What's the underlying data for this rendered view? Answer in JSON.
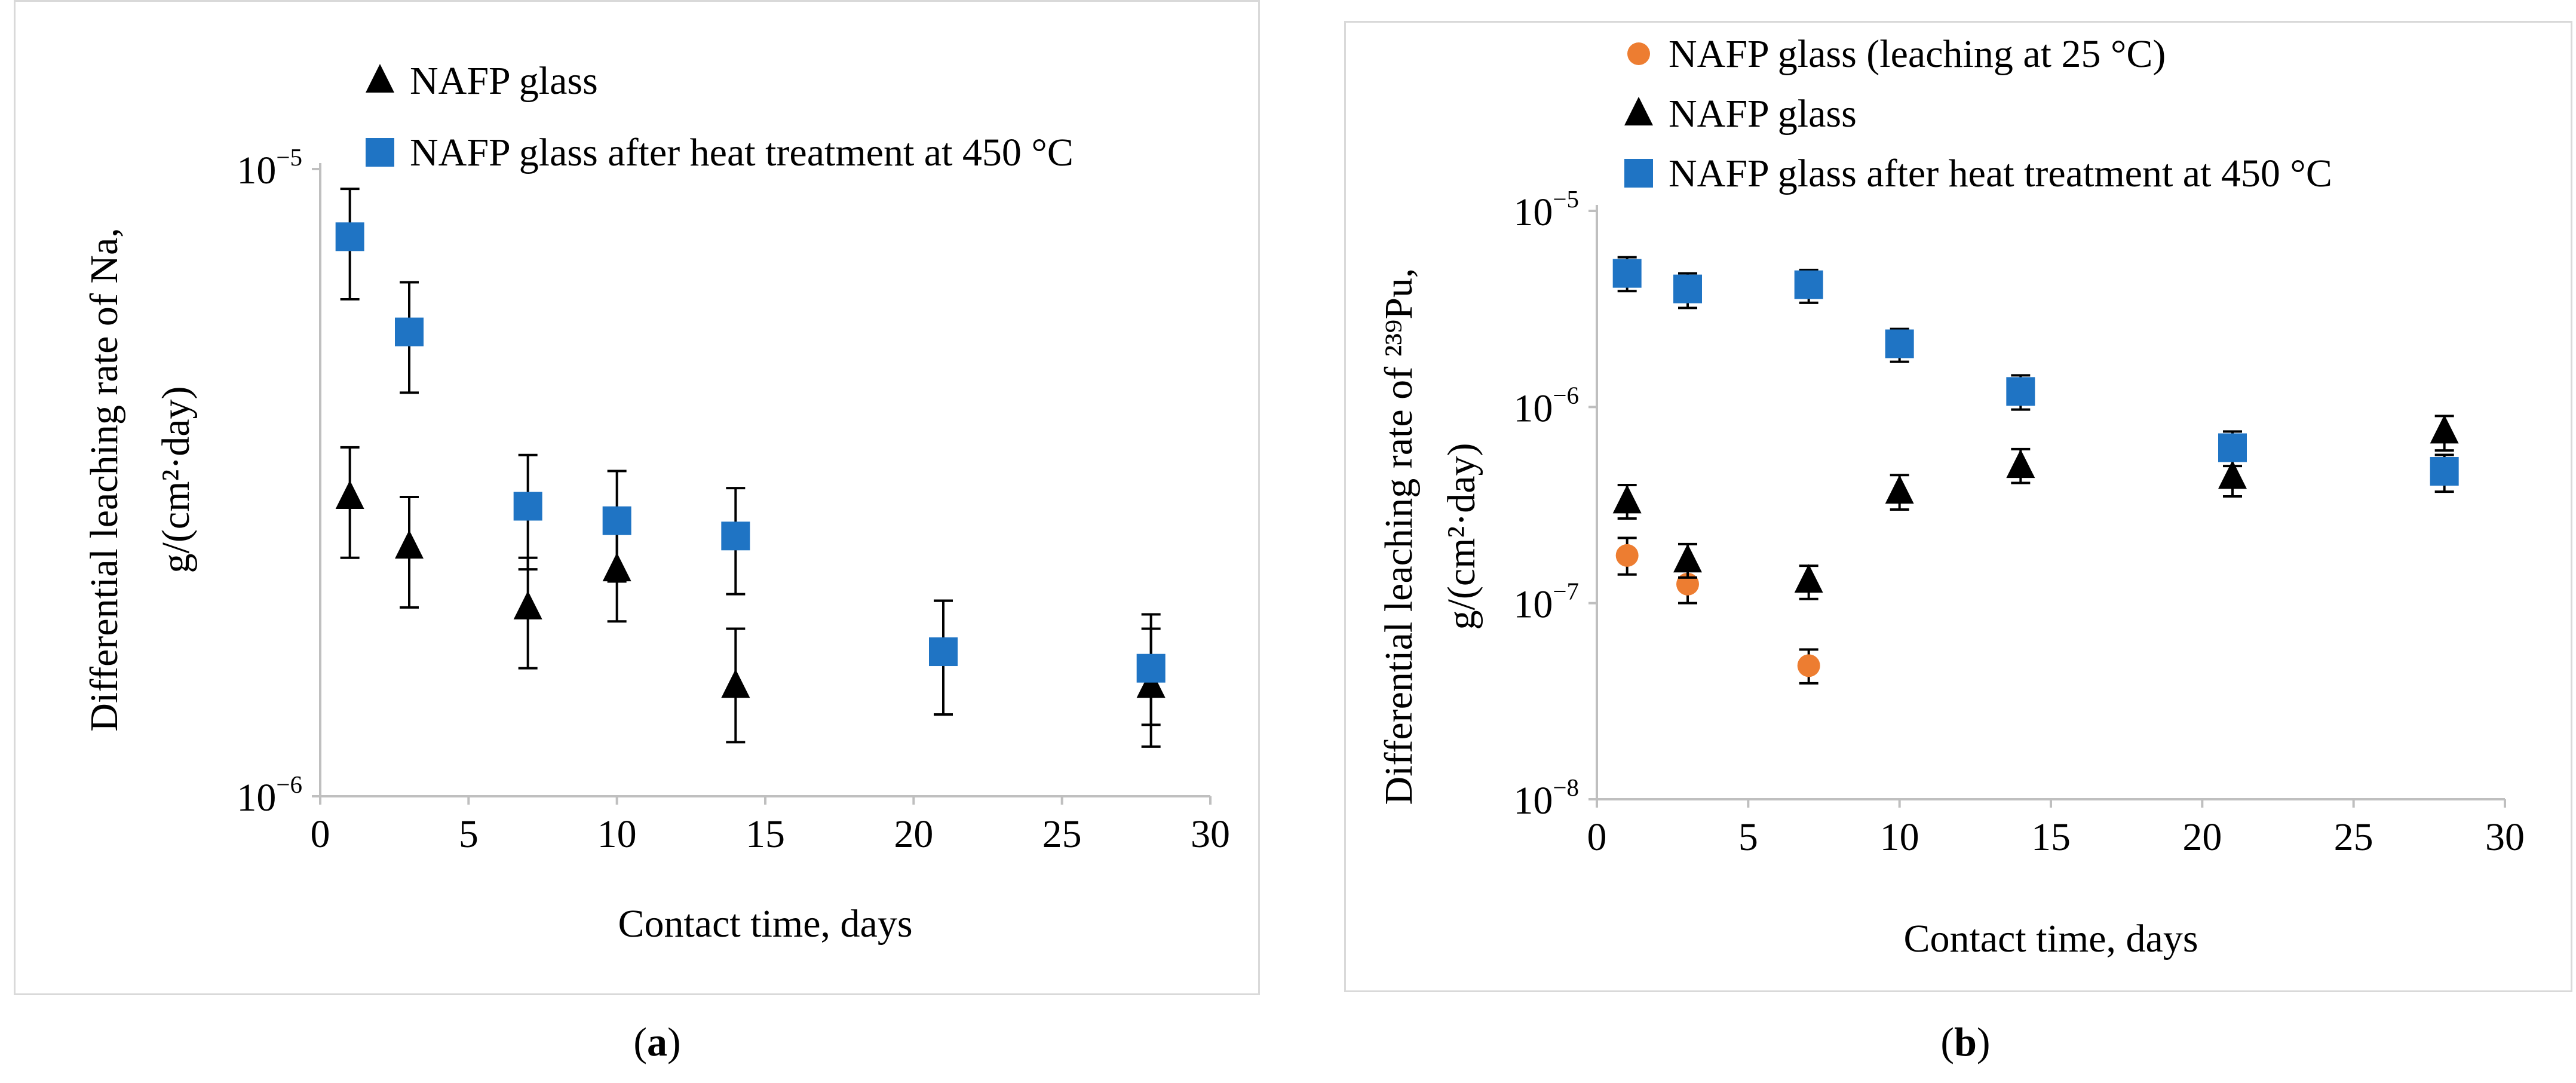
{
  "colors": {
    "blue": "#1f74c4",
    "orange": "#ed7d31",
    "black": "#000000",
    "axis": "#bfbfbf"
  },
  "chart_data": [
    {
      "id": "a",
      "type": "scatter",
      "yscale": "log",
      "xlabel": "Contact time, days",
      "ylabel_line1": "Differential leaching rate of Na,",
      "ylabel_line2": "g/(cm²·day)",
      "xlim": [
        0,
        30
      ],
      "ylim": [
        1e-06,
        1e-05
      ],
      "xticks": [
        "0",
        "5",
        "10",
        "15",
        "20",
        "25",
        "30"
      ],
      "yticks": [
        {
          "base": "10",
          "exp": "−6",
          "v": 1e-06
        },
        {
          "base": "10",
          "exp": "−5",
          "v": 1e-05
        }
      ],
      "subfig_label": "a",
      "series": [
        {
          "name": "NAFP glass",
          "marker": "triangle",
          "color": "#000000",
          "x": [
            1,
            3,
            7,
            10,
            14,
            21,
            28
          ],
          "y": [
            3e-06,
            2.5e-06,
            2e-06,
            2.3e-06,
            1.5e-06,
            1.7e-06,
            1.5e-06
          ],
          "err_low": [
            2.4e-06,
            2e-06,
            1.6e-06,
            1.9e-06,
            1.22e-06,
            1.35e-06,
            1.2e-06
          ],
          "err_high": [
            3.6e-06,
            3e-06,
            2.4e-06,
            2.8e-06,
            1.85e-06,
            2.05e-06,
            1.85e-06
          ]
        },
        {
          "name": "NAFP glass after heat treatment at 450 °C",
          "marker": "square",
          "color": "#1f74c4",
          "x": [
            1,
            3,
            7,
            10,
            14,
            21,
            28
          ],
          "y": [
            7.8e-06,
            5.5e-06,
            2.9e-06,
            2.75e-06,
            2.6e-06,
            1.7e-06,
            1.6e-06
          ],
          "err_low": [
            6.2e-06,
            4.4e-06,
            2.3e-06,
            2.2e-06,
            2.1e-06,
            1.35e-06,
            1.3e-06
          ],
          "err_high": [
            9.3e-06,
            6.6e-06,
            3.5e-06,
            3.3e-06,
            3.1e-06,
            2.05e-06,
            1.95e-06
          ]
        }
      ]
    },
    {
      "id": "b",
      "type": "scatter",
      "yscale": "log",
      "xlabel": "Contact time, days",
      "ylabel_line1": "Differential leaching rate of ²³⁹Pu,",
      "ylabel_line2": "g/(cm²·day)",
      "xlim": [
        0,
        30
      ],
      "ylim": [
        1e-08,
        1e-05
      ],
      "xticks": [
        "0",
        "5",
        "10",
        "15",
        "20",
        "25",
        "30"
      ],
      "yticks": [
        {
          "base": "10",
          "exp": "−8",
          "v": 1e-08
        },
        {
          "base": "10",
          "exp": "−7",
          "v": 1e-07
        },
        {
          "base": "10",
          "exp": "−6",
          "v": 1e-06
        },
        {
          "base": "10",
          "exp": "−5",
          "v": 1e-05
        }
      ],
      "subfig_label": "b",
      "series": [
        {
          "name": "NAFP glass (leaching at 25 °C)",
          "marker": "circle",
          "color": "#ed7d31",
          "x": [
            1,
            3,
            7
          ],
          "y": [
            1.75e-07,
            1.25e-07,
            4.8e-08
          ],
          "err_low": [
            1.4e-07,
            1e-07,
            3.9e-08
          ],
          "err_high": [
            2.15e-07,
            1.5e-07,
            5.8e-08
          ]
        },
        {
          "name": "NAFP glass",
          "marker": "triangle",
          "color": "#000000",
          "x": [
            1,
            3,
            7,
            10,
            14,
            21,
            28
          ],
          "y": [
            3.3e-07,
            1.65e-07,
            1.3e-07,
            3.7e-07,
            5e-07,
            4.4e-07,
            7.5e-07
          ],
          "err_low": [
            2.7e-07,
            1.35e-07,
            1.05e-07,
            3e-07,
            4.1e-07,
            3.5e-07,
            6e-07
          ],
          "err_high": [
            4e-07,
            2e-07,
            1.55e-07,
            4.5e-07,
            6.1e-07,
            5.4e-07,
            9e-07
          ]
        },
        {
          "name": "NAFP glass after heat treatment at 450 °C",
          "marker": "square",
          "color": "#1f74c4",
          "x": [
            1,
            3,
            7,
            10,
            14,
            21,
            28
          ],
          "y": [
            4.8e-06,
            4e-06,
            4.2e-06,
            2.1e-06,
            1.2e-06,
            6.2e-07,
            4.7e-07
          ],
          "err_low": [
            3.9e-06,
            3.2e-06,
            3.4e-06,
            1.7e-06,
            9.7e-07,
            5e-07,
            3.7e-07
          ],
          "err_high": [
            5.8e-06,
            4.8e-06,
            5e-06,
            2.5e-06,
            1.45e-06,
            7.5e-07,
            5.7e-07
          ]
        }
      ]
    }
  ]
}
